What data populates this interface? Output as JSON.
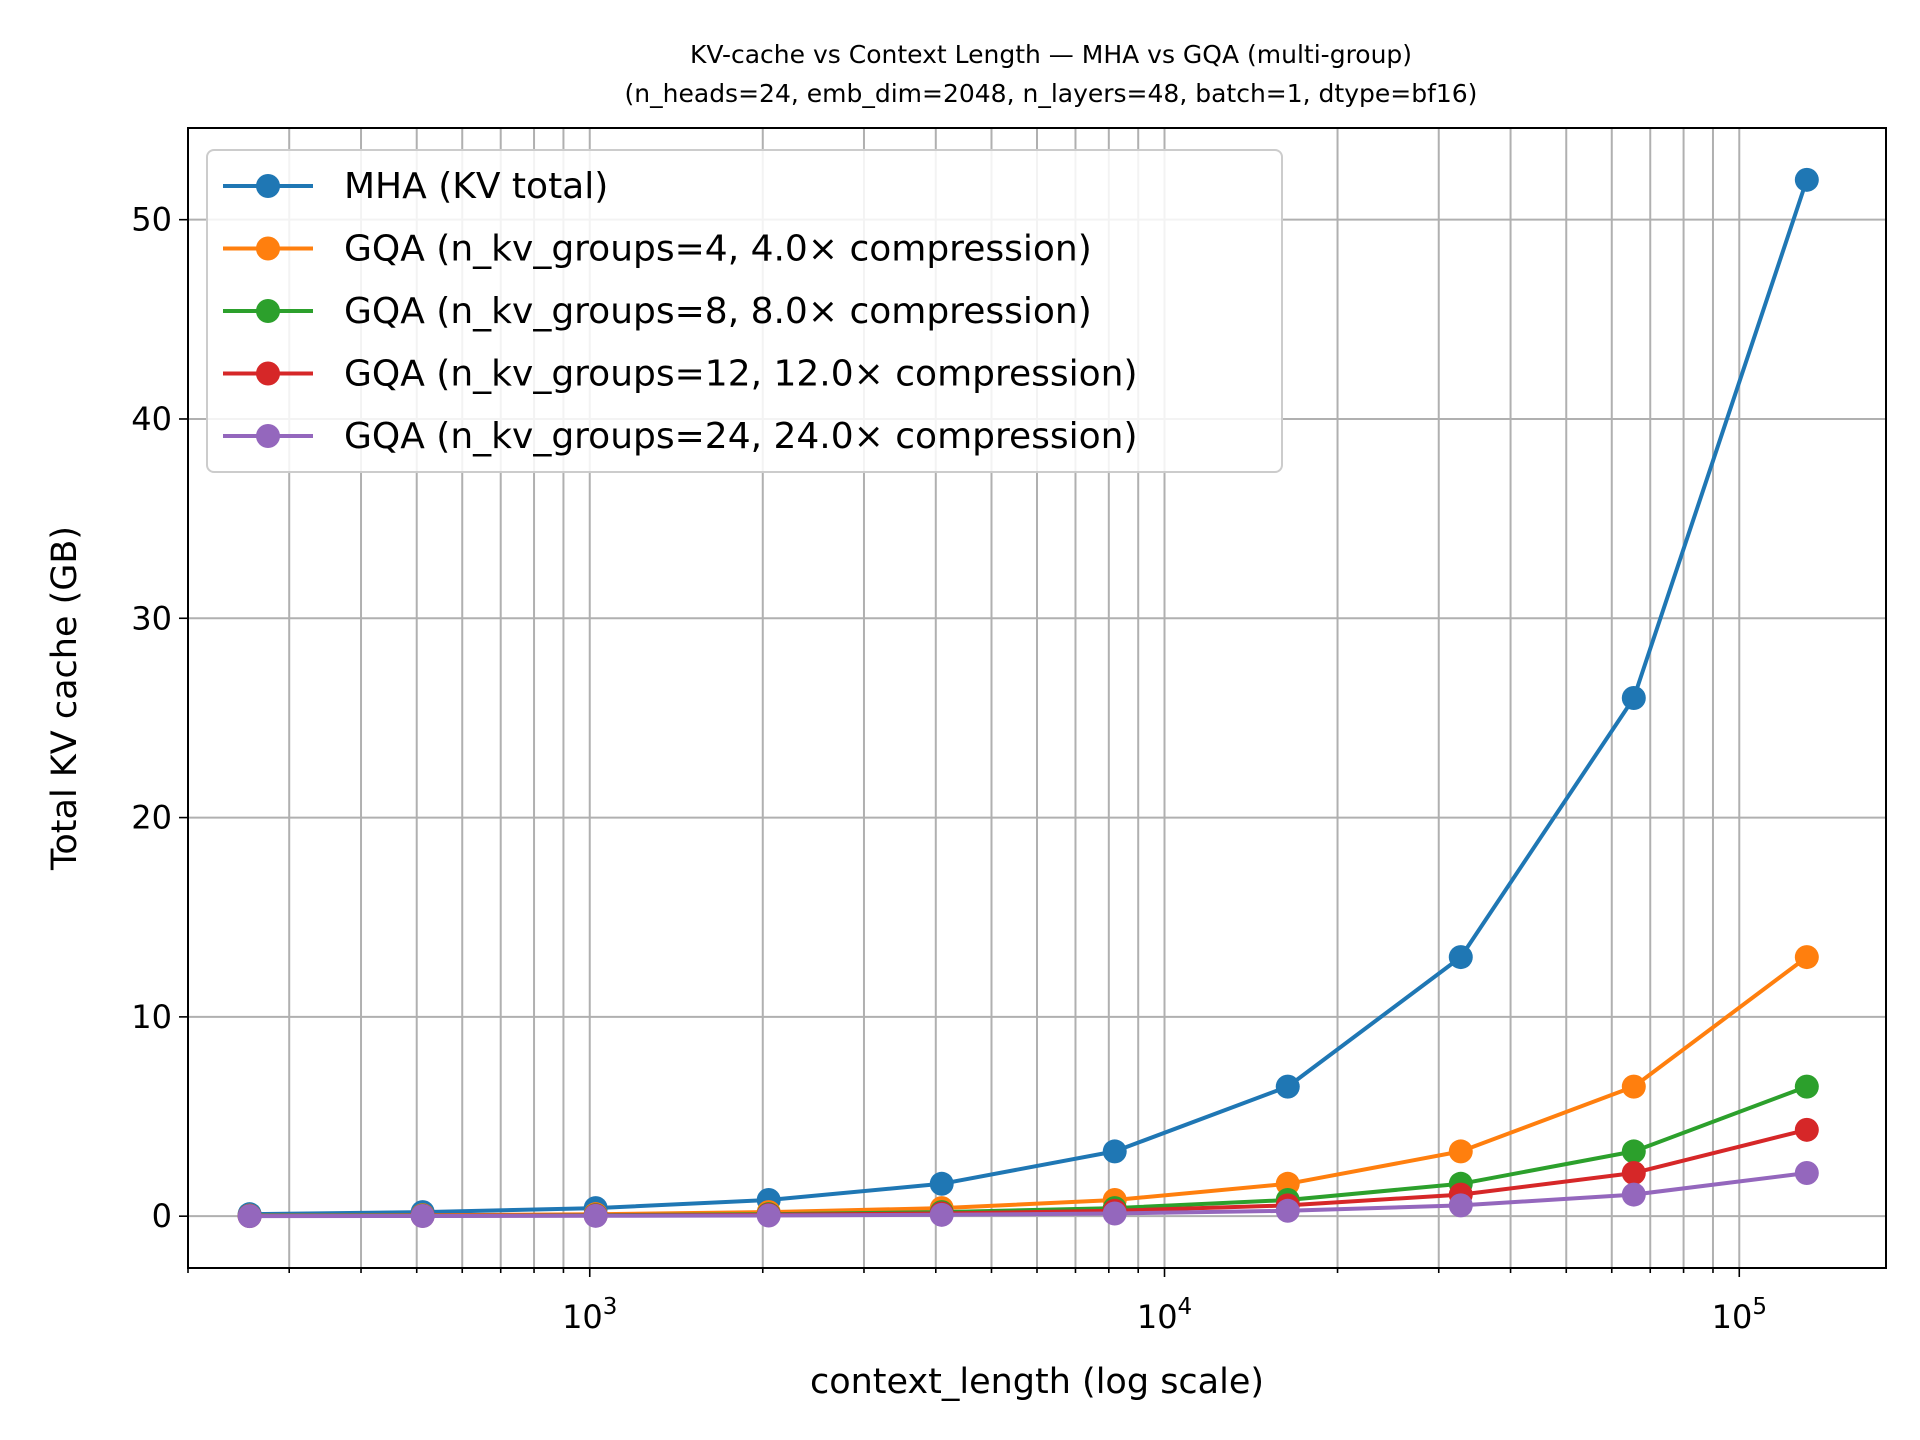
{
  "chart_data": {
    "type": "line",
    "title": "KV-cache vs Context Length — MHA vs GQA (multi-group)",
    "subtitle": "(n_heads=24, emb_dim=2048, n_layers=48, batch=1, dtype=bf16)",
    "xlabel": "context_length (log scale)",
    "ylabel": "Total KV cache (GB)",
    "xscale": "log",
    "xlim": [
      200,
      180000
    ],
    "ylim": [
      -2.6,
      54.6
    ],
    "grid": true,
    "legend_position": "top-left",
    "x": [
      256,
      512,
      1024,
      2048,
      4096,
      8192,
      16384,
      32768,
      65536,
      131072
    ],
    "y_ticks": [
      0,
      10,
      20,
      30,
      40,
      50
    ],
    "y_tick_labels": [
      "0",
      "10",
      "20",
      "30",
      "40",
      "50"
    ],
    "x_major_ticks": [
      1000,
      10000,
      100000
    ],
    "x_tick_labels": [
      {
        "base": "10",
        "exp": "3"
      },
      {
        "base": "10",
        "exp": "4"
      },
      {
        "base": "10",
        "exp": "5"
      }
    ],
    "series": [
      {
        "name": "MHA (KV total)",
        "color": "#1f77b4",
        "values": [
          0.101,
          0.203,
          0.406,
          0.812,
          1.625,
          3.25,
          6.5,
          13.0,
          26.0,
          52.0
        ]
      },
      {
        "name": "GQA (n_kv_groups=4, 4.0× compression)",
        "color": "#ff7f0e",
        "values": [
          0.025,
          0.051,
          0.101,
          0.203,
          0.406,
          0.812,
          1.625,
          3.25,
          6.5,
          13.0
        ]
      },
      {
        "name": "GQA (n_kv_groups=8, 8.0× compression)",
        "color": "#2ca02c",
        "values": [
          0.013,
          0.025,
          0.051,
          0.101,
          0.203,
          0.406,
          0.812,
          1.625,
          3.25,
          6.5
        ]
      },
      {
        "name": "GQA (n_kv_groups=12, 12.0× compression)",
        "color": "#d62728",
        "values": [
          0.008,
          0.017,
          0.034,
          0.068,
          0.135,
          0.271,
          0.542,
          1.083,
          2.167,
          4.333
        ]
      },
      {
        "name": "GQA (n_kv_groups=24, 24.0× compression)",
        "color": "#9467bd",
        "values": [
          0.004,
          0.008,
          0.017,
          0.034,
          0.068,
          0.135,
          0.271,
          0.542,
          1.083,
          2.167
        ]
      }
    ]
  }
}
